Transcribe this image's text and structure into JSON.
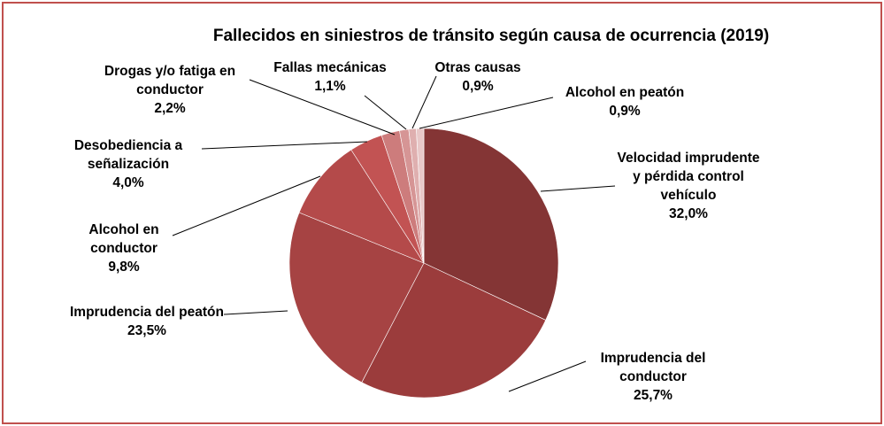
{
  "chart_data": {
    "type": "pie",
    "title": "Fallecidos en siniestros de tránsito según causa de ocurrencia (2019)",
    "categories": [
      "Velocidad imprudente y pérdida control vehículo",
      "Imprudencia del conductor",
      "Imprudencia del peatón",
      "Alcohol en conductor",
      "Desobediencia a señalización",
      "Drogas y/o fatiga en conductor",
      "Fallas mecánicas",
      "Otras causas",
      "Alcohol en peatón"
    ],
    "values": [
      32.0,
      25.7,
      23.5,
      9.8,
      4.0,
      2.2,
      1.1,
      0.9,
      0.9
    ],
    "value_labels": [
      "32,0%",
      "25,7%",
      "23,5%",
      "9,8%",
      "4,0%",
      "2,2%",
      "1,1%",
      "0,9%",
      "0,9%"
    ],
    "colors": [
      "#843535",
      "#9b3c3c",
      "#a64343",
      "#b44a4a",
      "#c25353",
      "#cd7c7c",
      "#d69595",
      "#dfafaf",
      "#e8c8c8"
    ]
  }
}
